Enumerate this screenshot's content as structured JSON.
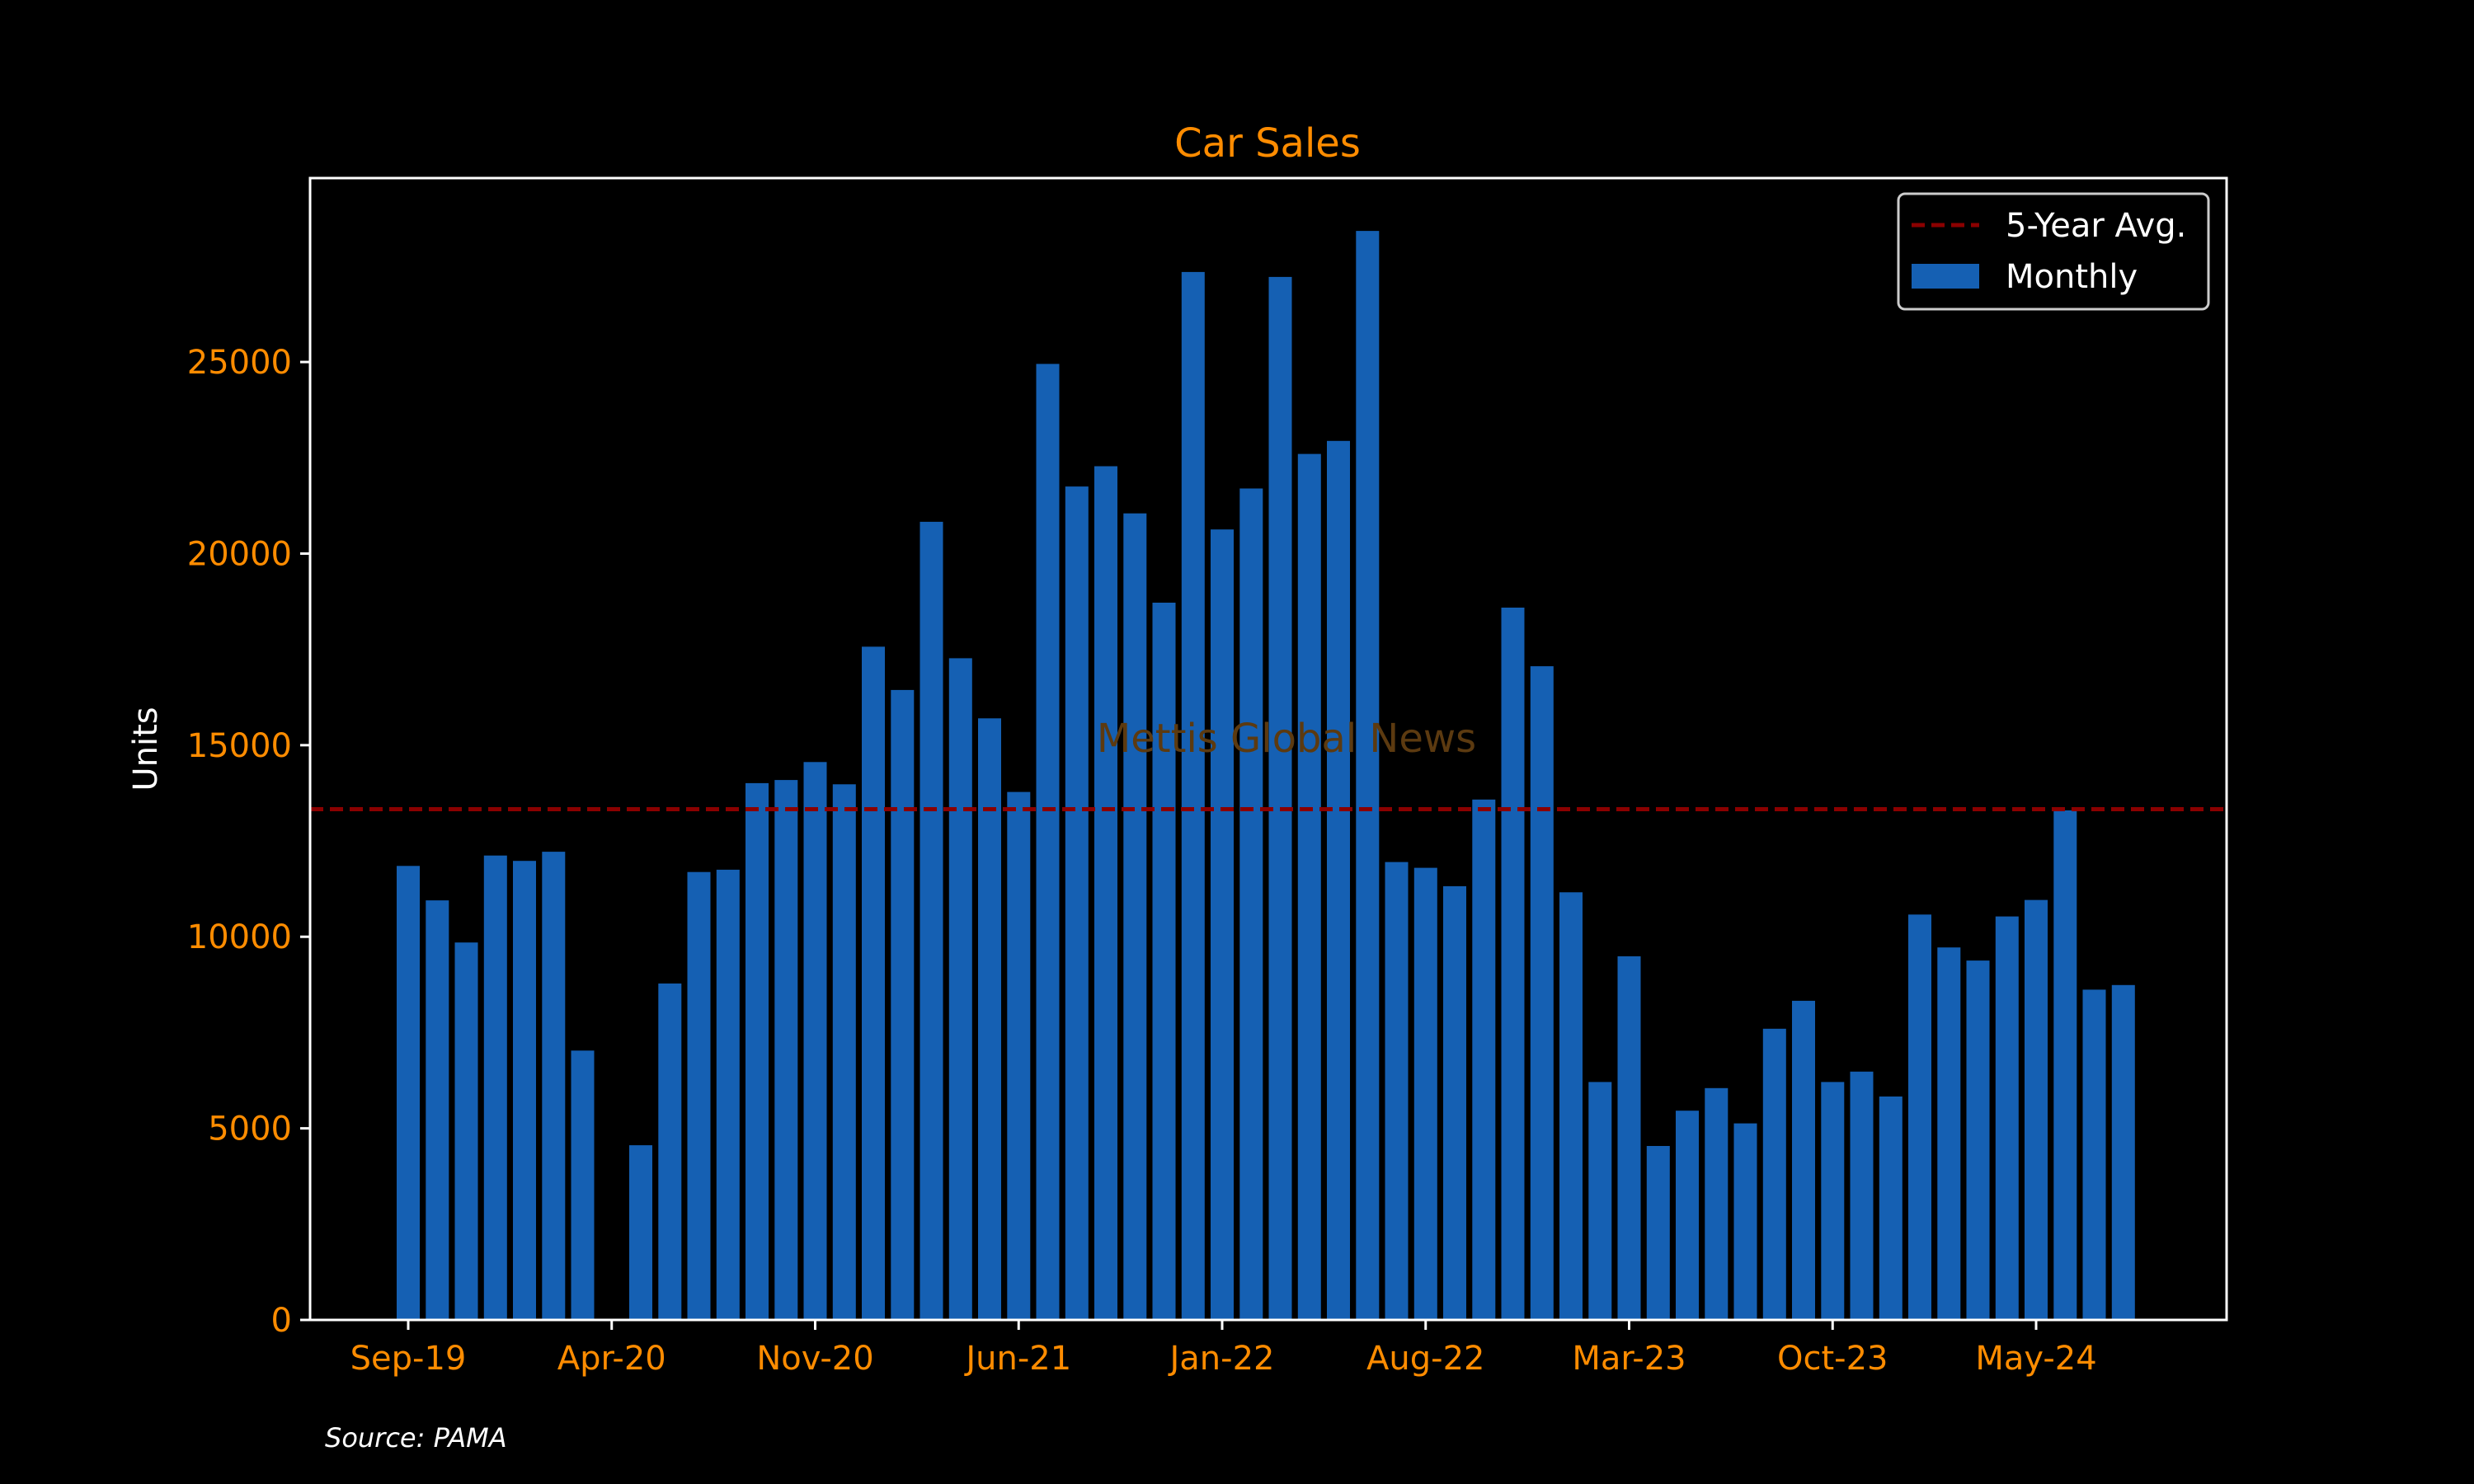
{
  "chart_data": {
    "type": "bar",
    "title": "Car Sales",
    "ylabel": "Units",
    "xlabel": "",
    "source": "Source: PAMA",
    "watermark": "Mettis Global News",
    "ylim": [
      0,
      29800
    ],
    "yticks": [
      0,
      5000,
      10000,
      15000,
      20000,
      25000
    ],
    "xticks": [
      "Sep-19",
      "Apr-20",
      "Nov-20",
      "Jun-21",
      "Jan-22",
      "Aug-22",
      "Mar-23",
      "Oct-23",
      "May-24"
    ],
    "categories": [
      "Sep-19",
      "Oct-19",
      "Nov-19",
      "Dec-19",
      "Jan-20",
      "Feb-20",
      "Mar-20",
      "Apr-20",
      "May-20",
      "Jun-20",
      "Jul-20",
      "Aug-20",
      "Sep-20",
      "Oct-20",
      "Nov-20",
      "Dec-20",
      "Jan-21",
      "Feb-21",
      "Mar-21",
      "Apr-21",
      "May-21",
      "Jun-21",
      "Jul-21",
      "Aug-21",
      "Sep-21",
      "Oct-21",
      "Nov-21",
      "Dec-21",
      "Jan-22",
      "Feb-22",
      "Mar-22",
      "Apr-22",
      "May-22",
      "Jun-22",
      "Jul-22",
      "Aug-22",
      "Sep-22",
      "Oct-22",
      "Nov-22",
      "Dec-22",
      "Jan-23",
      "Feb-23",
      "Mar-23",
      "Apr-23",
      "May-23",
      "Jun-23",
      "Jul-23",
      "Aug-23",
      "Sep-23",
      "Oct-23",
      "Nov-23",
      "Dec-23",
      "Jan-24",
      "Feb-24",
      "Mar-24",
      "Apr-24",
      "May-24",
      "Jun-24",
      "Jul-24",
      "Aug-24"
    ],
    "series": [
      {
        "name": "Monthly",
        "color": "#1560b3",
        "values": [
          11850,
          10950,
          9850,
          12120,
          11980,
          12220,
          7030,
          0,
          4560,
          8780,
          11690,
          11750,
          14010,
          14090,
          14560,
          13980,
          17570,
          16440,
          20830,
          17270,
          15700,
          13780,
          24950,
          21750,
          22280,
          21050,
          18720,
          27350,
          20630,
          21700,
          27220,
          22600,
          22940,
          28420,
          11950,
          11800,
          11320,
          13580,
          18590,
          17060,
          11160,
          6210,
          9490,
          4540,
          5460,
          6050,
          5130,
          7600,
          8330,
          6210,
          6480,
          5830,
          10580,
          9720,
          9380,
          10530,
          10960,
          13300,
          8620,
          8740
        ]
      }
    ],
    "reference_line": {
      "name": "5-Year Avg.",
      "value": 13330,
      "color": "#8b0000"
    },
    "legend_position": "top-right",
    "grid": false,
    "colors": {
      "background": "#000000",
      "frame": "#ffffff",
      "tick_text": "#ff8c00",
      "title": "#ff8c00",
      "label_text": "#ffffff",
      "watermark": "#5c3a10"
    }
  }
}
